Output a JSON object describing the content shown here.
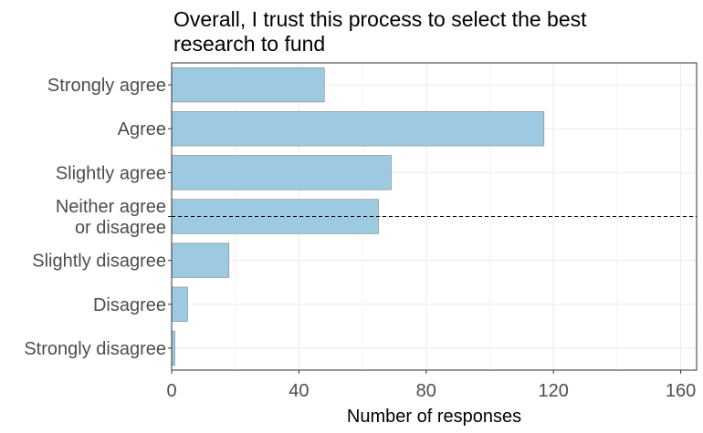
{
  "chart_data": {
    "type": "bar",
    "orientation": "horizontal",
    "title_lines": [
      "Overall, I trust this process to select the best",
      "research to fund"
    ],
    "categories": [
      [
        "Strongly agree"
      ],
      [
        "Agree"
      ],
      [
        "Slightly agree"
      ],
      [
        "Neither agree",
        "or disagree"
      ],
      [
        "Slightly disagree"
      ],
      [
        "Disagree"
      ],
      [
        "Strongly disagree"
      ]
    ],
    "values": [
      48,
      117,
      69,
      65,
      18,
      5,
      1
    ],
    "xlabel": "Number of responses",
    "xlim": [
      0,
      165
    ],
    "xticks": [
      0,
      40,
      80,
      120,
      160
    ],
    "grid": true,
    "reference_line": {
      "style": "dashed",
      "at_category": [
        "Neither agree",
        "or disagree"
      ]
    },
    "bar_color": "#9ecae1",
    "bar_border_color": "#8a9aa3"
  }
}
